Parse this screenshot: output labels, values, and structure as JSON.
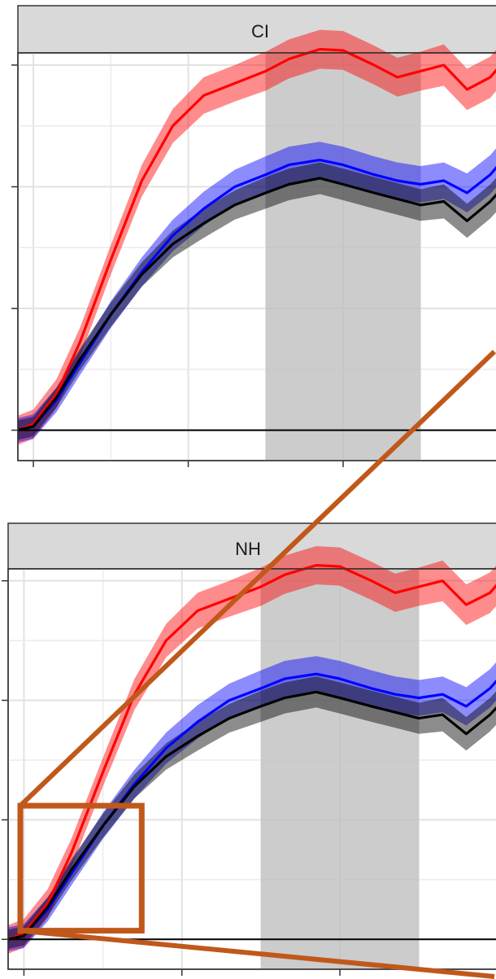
{
  "chart_data": [
    {
      "type": "line",
      "panel_label": "CI",
      "shaded_region": [
        4,
        6
      ],
      "xlim": [
        0.8,
        7.1
      ],
      "ylim": [
        -0.25,
        3.1
      ],
      "grid": true,
      "series": [
        {
          "color": "#ff0000",
          "x": [
            0.8,
            1.0,
            1.3,
            1.6,
            2.0,
            2.4,
            2.8,
            3.2,
            3.6,
            4.0,
            4.3,
            4.7,
            5.0,
            5.4,
            5.7,
            6.0,
            6.3,
            6.6,
            6.9,
            7.1
          ],
          "y": [
            0.0,
            0.05,
            0.3,
            0.72,
            1.4,
            2.05,
            2.5,
            2.75,
            2.85,
            2.95,
            3.05,
            3.13,
            3.12,
            3.0,
            2.9,
            2.95,
            3.0,
            2.8,
            2.9,
            3.05
          ],
          "band": [
            0.12,
            0.12,
            0.12,
            0.12,
            0.12,
            0.13,
            0.14,
            0.15,
            0.15,
            0.16,
            0.16,
            0.16,
            0.16,
            0.16,
            0.16,
            0.16,
            0.17,
            0.17,
            0.17,
            0.17
          ]
        },
        {
          "color": "#0000ff",
          "x": [
            0.8,
            1.0,
            1.3,
            1.6,
            2.0,
            2.4,
            2.8,
            3.2,
            3.6,
            4.0,
            4.3,
            4.7,
            5.0,
            5.4,
            5.7,
            6.0,
            6.3,
            6.6,
            6.9,
            7.1
          ],
          "y": [
            0.0,
            0.03,
            0.25,
            0.55,
            0.95,
            1.3,
            1.6,
            1.82,
            2.0,
            2.1,
            2.18,
            2.22,
            2.18,
            2.1,
            2.05,
            2.02,
            2.05,
            1.95,
            2.1,
            2.25
          ],
          "band": [
            0.1,
            0.1,
            0.1,
            0.1,
            0.11,
            0.12,
            0.13,
            0.14,
            0.14,
            0.15,
            0.15,
            0.15,
            0.15,
            0.15,
            0.15,
            0.15,
            0.15,
            0.16,
            0.16,
            0.16
          ]
        },
        {
          "color": "#000000",
          "x": [
            0.8,
            1.0,
            1.3,
            1.6,
            2.0,
            2.4,
            2.8,
            3.2,
            3.6,
            4.0,
            4.3,
            4.7,
            5.0,
            5.4,
            5.7,
            6.0,
            6.3,
            6.6,
            6.9,
            7.1
          ],
          "y": [
            0.0,
            0.03,
            0.27,
            0.58,
            0.95,
            1.28,
            1.53,
            1.7,
            1.85,
            1.95,
            2.02,
            2.07,
            2.02,
            1.95,
            1.9,
            1.85,
            1.88,
            1.72,
            1.88,
            2.02
          ],
          "band": [
            0.08,
            0.08,
            0.08,
            0.09,
            0.1,
            0.1,
            0.11,
            0.12,
            0.12,
            0.13,
            0.13,
            0.13,
            0.13,
            0.13,
            0.13,
            0.13,
            0.14,
            0.14,
            0.14,
            0.14
          ]
        }
      ]
    },
    {
      "type": "line",
      "panel_label": "NH",
      "shaded_region": [
        4,
        6
      ],
      "xlim": [
        0.8,
        7.1
      ],
      "ylim": [
        -0.25,
        3.1
      ],
      "grid": true,
      "series": [
        {
          "color": "#ff0000",
          "x": [
            0.8,
            1.0,
            1.3,
            1.6,
            2.0,
            2.4,
            2.8,
            3.2,
            3.6,
            4.0,
            4.3,
            4.7,
            5.0,
            5.4,
            5.7,
            6.0,
            6.3,
            6.6,
            6.9,
            7.1
          ],
          "y": [
            0.0,
            0.05,
            0.3,
            0.72,
            1.4,
            2.05,
            2.5,
            2.75,
            2.85,
            2.95,
            3.05,
            3.13,
            3.12,
            3.0,
            2.9,
            2.95,
            3.0,
            2.8,
            2.9,
            3.05
          ],
          "band": [
            0.12,
            0.12,
            0.12,
            0.12,
            0.12,
            0.13,
            0.14,
            0.15,
            0.15,
            0.16,
            0.16,
            0.16,
            0.16,
            0.16,
            0.16,
            0.16,
            0.17,
            0.17,
            0.17,
            0.17
          ]
        },
        {
          "color": "#0000ff",
          "x": [
            0.8,
            1.0,
            1.3,
            1.6,
            2.0,
            2.4,
            2.8,
            3.2,
            3.6,
            4.0,
            4.3,
            4.7,
            5.0,
            5.4,
            5.7,
            6.0,
            6.3,
            6.6,
            6.9,
            7.1
          ],
          "y": [
            0.0,
            0.03,
            0.25,
            0.55,
            0.95,
            1.3,
            1.6,
            1.82,
            2.0,
            2.1,
            2.18,
            2.22,
            2.18,
            2.1,
            2.05,
            2.02,
            2.05,
            1.95,
            2.1,
            2.25
          ],
          "band": [
            0.1,
            0.1,
            0.1,
            0.1,
            0.11,
            0.12,
            0.13,
            0.14,
            0.14,
            0.15,
            0.15,
            0.15,
            0.15,
            0.15,
            0.15,
            0.15,
            0.15,
            0.16,
            0.16,
            0.16
          ]
        },
        {
          "color": "#000000",
          "x": [
            0.8,
            1.0,
            1.3,
            1.6,
            2.0,
            2.4,
            2.8,
            3.2,
            3.6,
            4.0,
            4.3,
            4.7,
            5.0,
            5.4,
            5.7,
            6.0,
            6.3,
            6.6,
            6.9,
            7.1
          ],
          "y": [
            0.0,
            0.03,
            0.27,
            0.58,
            0.95,
            1.28,
            1.53,
            1.7,
            1.85,
            1.95,
            2.02,
            2.07,
            2.02,
            1.95,
            1.9,
            1.85,
            1.88,
            1.72,
            1.88,
            2.02
          ],
          "band": [
            0.08,
            0.08,
            0.08,
            0.09,
            0.1,
            0.1,
            0.11,
            0.12,
            0.12,
            0.13,
            0.13,
            0.13,
            0.13,
            0.13,
            0.13,
            0.13,
            0.14,
            0.14,
            0.14,
            0.14
          ]
        }
      ]
    }
  ],
  "callout": {
    "color": "#c0581a",
    "x_range": [
      0.8,
      2.8
    ],
    "y_range": [
      -0.05,
      1.05
    ]
  }
}
